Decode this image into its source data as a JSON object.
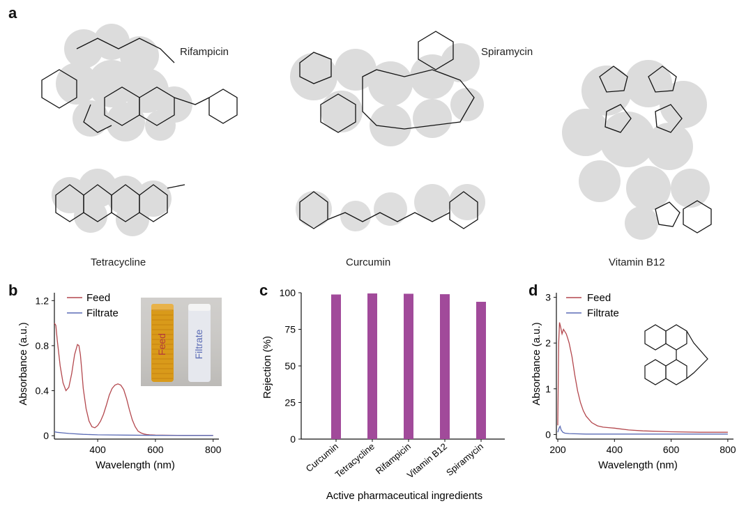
{
  "panels": {
    "a": "a",
    "b": "b",
    "c": "c",
    "d": "d"
  },
  "molecules": {
    "rifampicin": "Rifampicin",
    "spiramycin": "Spiramycin",
    "vitamin_b12": "Vitamin B12",
    "tetracycline": "Tetracycline",
    "curcumin": "Curcumin"
  },
  "inset_b": {
    "vial1": "Feed",
    "vial2": "Filtrate"
  },
  "chart_data": [
    {
      "panel": "b",
      "type": "line",
      "xlabel": "Wavelength (nm)",
      "ylabel": "Absorbance (a.u.)",
      "xlim": [
        250,
        820
      ],
      "ylim": [
        -0.03,
        1.27
      ],
      "xticks": [
        400,
        600,
        800
      ],
      "yticks": [
        0,
        0.4,
        0.8,
        1.2
      ],
      "ytick_labels": [
        "0",
        "0.4",
        "0.8",
        "1.2"
      ],
      "legend": "top-left",
      "series": [
        {
          "name": "Feed",
          "color": "#b3474d",
          "x": [
            250,
            255,
            260,
            270,
            280,
            290,
            300,
            310,
            320,
            330,
            335,
            340,
            345,
            350,
            360,
            370,
            380,
            390,
            400,
            410,
            420,
            430,
            440,
            450,
            460,
            470,
            480,
            490,
            500,
            510,
            520,
            530,
            540,
            550,
            560,
            570,
            580,
            600,
            650,
            700,
            750,
            800
          ],
          "y": [
            1.0,
            0.98,
            0.85,
            0.62,
            0.47,
            0.4,
            0.43,
            0.55,
            0.72,
            0.81,
            0.8,
            0.72,
            0.58,
            0.42,
            0.24,
            0.13,
            0.08,
            0.07,
            0.09,
            0.13,
            0.19,
            0.27,
            0.36,
            0.42,
            0.45,
            0.46,
            0.45,
            0.41,
            0.33,
            0.23,
            0.14,
            0.08,
            0.04,
            0.025,
            0.015,
            0.01,
            0.008,
            0.005,
            0.004,
            0.003,
            0.003,
            0.003
          ]
        },
        {
          "name": "Filtrate",
          "color": "#5a6bb5",
          "x": [
            250,
            260,
            280,
            300,
            350,
            400,
            500,
            600,
            700,
            800
          ],
          "y": [
            0.035,
            0.03,
            0.025,
            0.02,
            0.012,
            0.008,
            0.005,
            0.003,
            0.002,
            0.002
          ]
        }
      ]
    },
    {
      "panel": "c",
      "type": "bar",
      "xlabel": "Active pharmaceutical ingredients",
      "ylabel": "Rejection (%)",
      "ylim": [
        0,
        100
      ],
      "yticks": [
        0,
        25,
        50,
        75,
        100
      ],
      "categories": [
        "Curcumin",
        "Tetracycline",
        "Rifampicin",
        "Vitamin B12",
        "Spiramycin"
      ],
      "values": [
        98.8,
        99.5,
        99.3,
        99.0,
        93.8
      ],
      "color": "#a14a9a"
    },
    {
      "panel": "d",
      "type": "line",
      "xlabel": "Wavelength (nm)",
      "ylabel": "Absorbance (a.u.)",
      "xlim": [
        195,
        820
      ],
      "ylim": [
        -0.1,
        3.1
      ],
      "xticks": [
        200,
        400,
        600,
        800
      ],
      "yticks": [
        0,
        1,
        2,
        3
      ],
      "ytick_labels": [
        "0",
        "1",
        "2",
        "3"
      ],
      "legend": "top-left",
      "series": [
        {
          "name": "Feed",
          "color": "#b3474d",
          "x": [
            200,
            203,
            206,
            210,
            215,
            220,
            225,
            230,
            235,
            240,
            250,
            260,
            270,
            280,
            290,
            300,
            320,
            340,
            360,
            380,
            400,
            450,
            500,
            600,
            700,
            800
          ],
          "y": [
            0.2,
            2.0,
            2.45,
            2.35,
            2.2,
            2.3,
            2.25,
            2.2,
            2.1,
            2.0,
            1.7,
            1.3,
            0.95,
            0.7,
            0.52,
            0.4,
            0.26,
            0.19,
            0.16,
            0.15,
            0.14,
            0.1,
            0.08,
            0.06,
            0.05,
            0.05
          ]
        },
        {
          "name": "Filtrate",
          "color": "#5a6bb5",
          "x": [
            200,
            205,
            208,
            212,
            218,
            225,
            240,
            300,
            400,
            600,
            800
          ],
          "y": [
            0.05,
            0.15,
            0.18,
            0.1,
            0.05,
            0.03,
            0.02,
            0.01,
            0.01,
            0.01,
            0.01
          ]
        }
      ]
    }
  ]
}
